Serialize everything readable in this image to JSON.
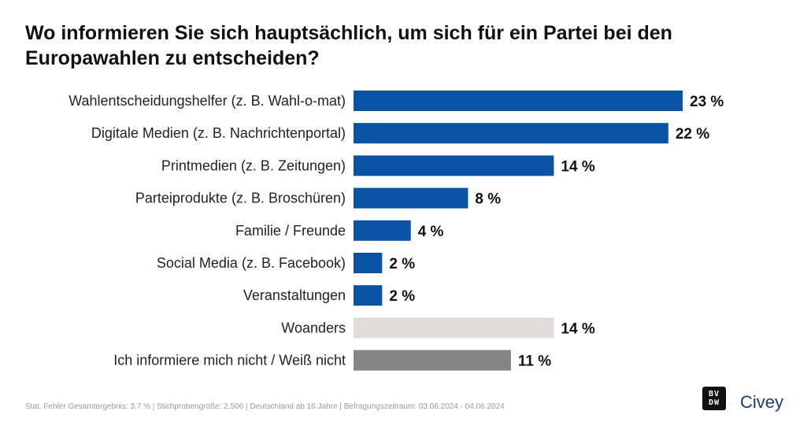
{
  "title": "Wo informieren Sie sich hauptsächlich, um sich für ein Partei bei den Europawahlen zu entscheiden?",
  "footer": "Stat. Fehler Gesamtergebnis: 3,7 % | Stichprobengröße: 2.506 | Deutschland ab 16 Jahre | Befragungszeitraum: 03.06.2024 - 04.06.2024",
  "logos": {
    "bvdw_top": "BV",
    "bvdw_bottom": "DW",
    "civey": "Civey"
  },
  "colors": {
    "main": "#0a52a3",
    "other": "#e0dcd9",
    "none": "#858585"
  },
  "chart_data": {
    "type": "bar",
    "orientation": "horizontal",
    "categories": [
      "Wahlentscheidungshelfer (z. B. Wahl-o-mat)",
      "Digitale Medien (z. B. Nachrichtenportal)",
      "Printmedien (z. B. Zeitungen)",
      "Parteiprodukte (z. B. Broschüren)",
      "Familie / Freunde",
      "Social Media (z. B. Facebook)",
      "Veranstaltungen",
      "Woanders",
      "Ich informiere mich nicht / Weiß nicht"
    ],
    "values": [
      23,
      22,
      14,
      8,
      4,
      2,
      2,
      14,
      11
    ],
    "value_labels": [
      "23 %",
      "22 %",
      "14 %",
      "8 %",
      "4 %",
      "2 %",
      "2 %",
      "14 %",
      "11 %"
    ],
    "bar_colors": [
      "main",
      "main",
      "main",
      "main",
      "main",
      "main",
      "main",
      "other",
      "none"
    ],
    "unit": "%",
    "xlim": [
      0,
      23
    ],
    "grid": false,
    "legend": "none"
  }
}
